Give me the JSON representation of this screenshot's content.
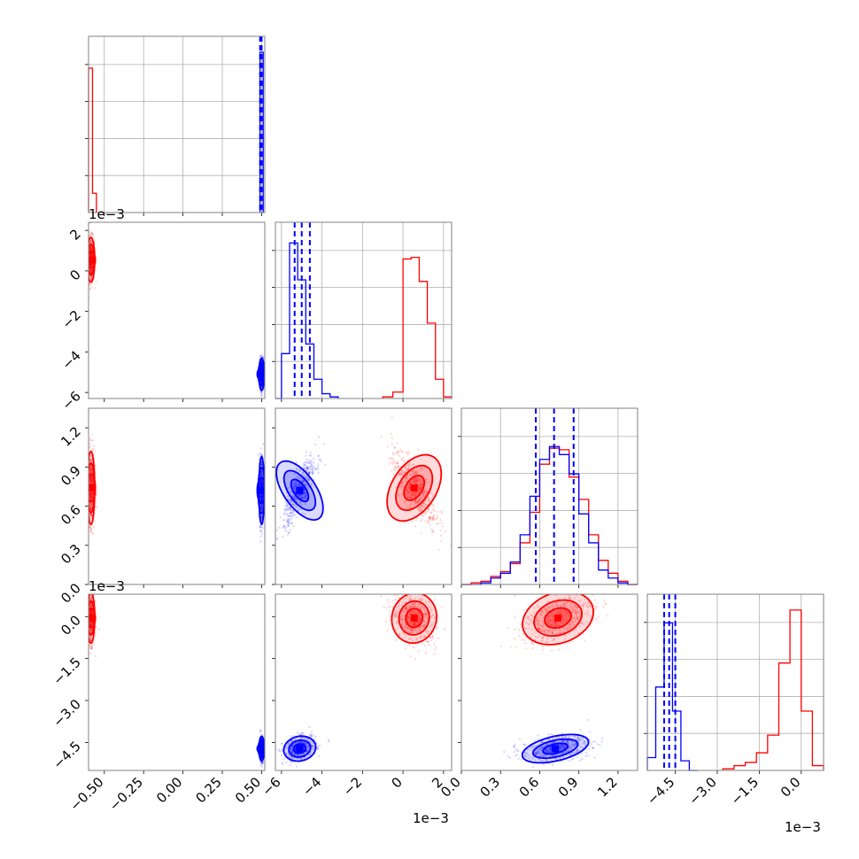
{
  "chart_data": {
    "type": "corner",
    "parameters_count": 4,
    "series": [
      {
        "name": "",
        "color": "#ff0000"
      },
      {
        "name": "",
        "color": "#0000ff"
      }
    ],
    "axes": [
      {
        "label": "",
        "range": [
          -0.6,
          0.52
        ],
        "ticks": [
          "−0.50",
          "−0.25",
          "0.00",
          "0.25",
          "0.50"
        ],
        "tick_values": [
          -0.5,
          -0.25,
          0.0,
          0.25,
          0.5
        ],
        "offset": ""
      },
      {
        "label": "",
        "range": [
          -6.3,
          2.4
        ],
        "ticks": [
          "−6",
          "−4",
          "−2",
          "0",
          "2"
        ],
        "tick_values": [
          -6,
          -4,
          -2,
          0,
          2
        ],
        "offset": "1e−3"
      },
      {
        "label": "",
        "range": [
          0.0,
          1.35
        ],
        "ticks": [
          "0.0",
          "0.3",
          "0.6",
          "0.9",
          "1.2"
        ],
        "tick_values": [
          0.0,
          0.3,
          0.6,
          0.9,
          1.2
        ],
        "offset": ""
      },
      {
        "label": "",
        "range": [
          -5.5,
          0.8
        ],
        "ticks": [
          "−4.5",
          "−3.0",
          "−1.5",
          "0.0"
        ],
        "tick_values": [
          -4.5,
          -3.0,
          -1.5,
          0.0
        ],
        "offset": "1e−3"
      }
    ],
    "diagonal_offsets": {
      "row1": "1e−3",
      "row3": "1e−3"
    },
    "quantiles": {
      "p0": [
        0.49,
        0.495,
        0.5
      ],
      "p1": [
        -5.35,
        -5.0,
        -4.6
      ],
      "p2": [
        0.57,
        0.71,
        0.86
      ],
      "p3": [
        -4.9,
        -4.72,
        -4.5
      ]
    },
    "histograms": {
      "p0": {
        "red_bins": [
          0.0,
          0.0,
          0.0,
          0.0
        ],
        "red": [
          [
            -0.6,
            -0.575,
            0.9
          ],
          [
            -0.575,
            -0.55,
            0.12
          ]
        ],
        "blue": [
          [
            0.49,
            0.51,
            1.0
          ]
        ]
      },
      "p1": {
        "red": [
          [
            -1.0,
            -0.5,
            0.01
          ],
          [
            -0.5,
            0.0,
            0.04
          ],
          [
            0.0,
            0.4,
            0.87
          ],
          [
            0.4,
            0.8,
            0.88
          ],
          [
            0.8,
            1.2,
            0.73
          ],
          [
            1.2,
            1.6,
            0.47
          ],
          [
            1.6,
            2.0,
            0.12
          ],
          [
            2.0,
            2.4,
            0.01
          ]
        ],
        "blue": [
          [
            -6.3,
            -6.0,
            0.0
          ],
          [
            -6.0,
            -5.6,
            0.28
          ],
          [
            -5.6,
            -5.2,
            0.97
          ],
          [
            -5.2,
            -4.8,
            0.74
          ],
          [
            -4.8,
            -4.4,
            0.34
          ],
          [
            -4.4,
            -4.0,
            0.12
          ],
          [
            -4.0,
            -3.6,
            0.03
          ],
          [
            -3.6,
            -3.2,
            0.01
          ]
        ]
      },
      "p2": {
        "red": [
          [
            0.0,
            0.075,
            0.0
          ],
          [
            0.075,
            0.15,
            0.01
          ],
          [
            0.15,
            0.225,
            0.02
          ],
          [
            0.225,
            0.3,
            0.05
          ],
          [
            0.3,
            0.375,
            0.08
          ],
          [
            0.375,
            0.45,
            0.13
          ],
          [
            0.45,
            0.525,
            0.26
          ],
          [
            0.525,
            0.6,
            0.45
          ],
          [
            0.6,
            0.675,
            0.75
          ],
          [
            0.675,
            0.75,
            0.85
          ],
          [
            0.75,
            0.825,
            0.84
          ],
          [
            0.825,
            0.9,
            0.67
          ],
          [
            0.9,
            0.975,
            0.53
          ],
          [
            0.975,
            1.05,
            0.31
          ],
          [
            1.05,
            1.125,
            0.15
          ],
          [
            1.125,
            1.2,
            0.07
          ],
          [
            1.2,
            1.275,
            0.02
          ],
          [
            1.275,
            1.35,
            0.0
          ]
        ],
        "blue": [
          [
            0.0,
            0.075,
            0.0
          ],
          [
            0.075,
            0.15,
            0.0
          ],
          [
            0.15,
            0.225,
            0.01
          ],
          [
            0.225,
            0.3,
            0.04
          ],
          [
            0.3,
            0.375,
            0.07
          ],
          [
            0.375,
            0.45,
            0.14
          ],
          [
            0.45,
            0.525,
            0.31
          ],
          [
            0.525,
            0.6,
            0.55
          ],
          [
            0.6,
            0.675,
            0.78
          ],
          [
            0.675,
            0.75,
            0.86
          ],
          [
            0.75,
            0.825,
            0.81
          ],
          [
            0.825,
            0.9,
            0.69
          ],
          [
            0.9,
            0.975,
            0.44
          ],
          [
            0.975,
            1.05,
            0.26
          ],
          [
            1.05,
            1.125,
            0.09
          ],
          [
            1.125,
            1.2,
            0.04
          ],
          [
            1.2,
            1.275,
            0.01
          ],
          [
            1.275,
            1.35,
            0.0
          ]
        ]
      },
      "p3": {
        "red": [
          [
            -2.8,
            -2.4,
            0.01
          ],
          [
            -2.4,
            -2.0,
            0.03
          ],
          [
            -2.0,
            -1.6,
            0.05
          ],
          [
            -1.6,
            -1.2,
            0.11
          ],
          [
            -1.2,
            -0.8,
            0.22
          ],
          [
            -0.8,
            -0.4,
            0.67
          ],
          [
            -0.4,
            0.0,
            1.0
          ],
          [
            0.0,
            0.4,
            0.37
          ],
          [
            0.4,
            0.8,
            0.03
          ]
        ],
        "blue": [
          [
            -5.5,
            -5.2,
            0.08
          ],
          [
            -5.2,
            -4.9,
            0.52
          ],
          [
            -4.9,
            -4.6,
            0.92
          ],
          [
            -4.6,
            -4.3,
            0.37
          ],
          [
            -4.3,
            -4.0,
            0.06
          ],
          [
            -4.0,
            -3.7,
            0.0
          ]
        ]
      }
    },
    "clusters": {
      "p0": {
        "red": -0.585,
        "blue": 0.5
      },
      "p1": {
        "red": 0.55,
        "blue": -5.1
      },
      "p2": {
        "red": 0.74,
        "blue": 0.72
      },
      "p3": {
        "red": -0.05,
        "blue": -4.72
      }
    },
    "grid": true,
    "legend": "none"
  }
}
